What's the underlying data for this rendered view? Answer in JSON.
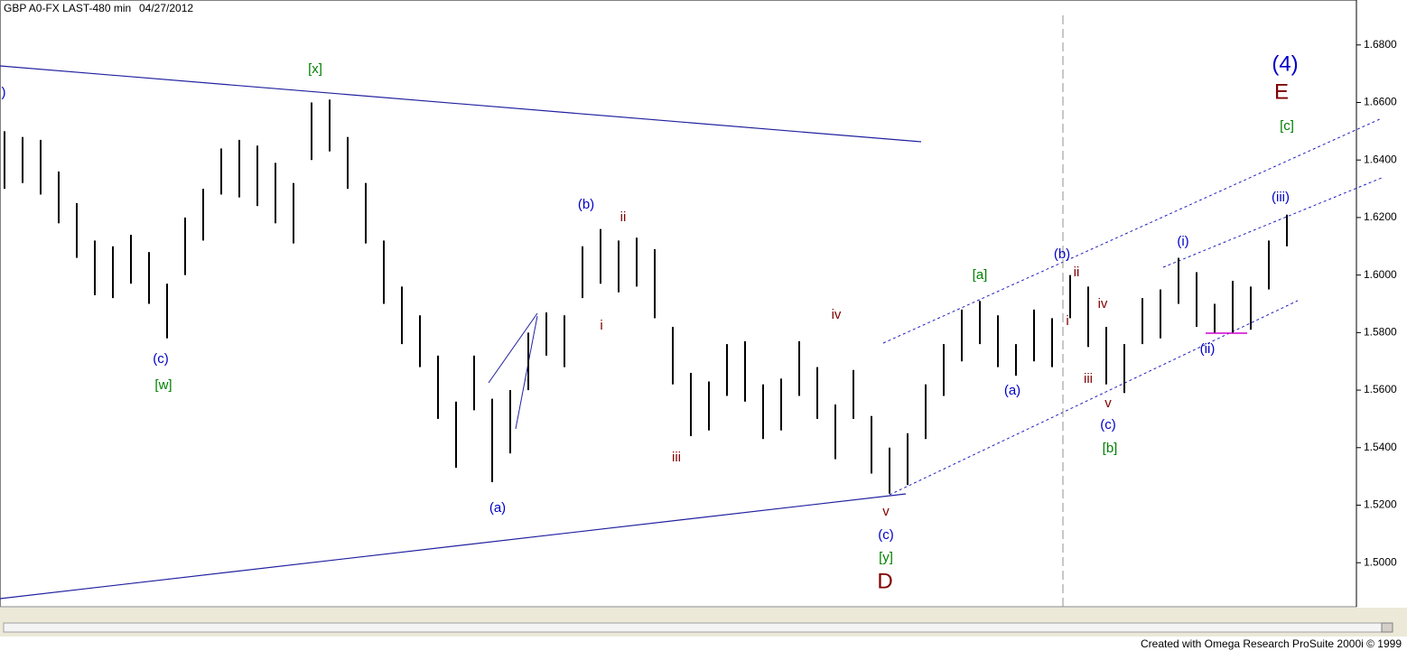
{
  "chart_data": {
    "type": "ohlc",
    "title": "GBP A0-FX LAST-480 min",
    "date": "04/27/2012",
    "ylim": [
      1.485,
      1.695
    ],
    "yticks": [
      {
        "value": 1.5,
        "label": "1.5000"
      },
      {
        "value": 1.52,
        "label": "1.5200"
      },
      {
        "value": 1.54,
        "label": "1.5400"
      },
      {
        "value": 1.56,
        "label": "1.5600"
      },
      {
        "value": 1.58,
        "label": "1.5800"
      },
      {
        "value": 1.6,
        "label": "1.6000"
      },
      {
        "value": 1.62,
        "label": "1.6200"
      },
      {
        "value": 1.64,
        "label": "1.6400"
      },
      {
        "value": 1.66,
        "label": "1.6600"
      },
      {
        "value": 1.68,
        "label": "1.6800"
      }
    ],
    "series": [
      {
        "color": "#000000",
        "high": [
          1.65,
          1.648,
          1.647,
          1.636,
          1.625,
          1.612,
          1.61,
          1.614,
          1.608,
          1.597,
          1.62,
          1.63,
          1.644,
          1.647,
          1.645,
          1.639,
          1.632,
          1.66,
          1.661,
          1.648,
          1.632,
          1.612,
          1.596,
          1.586,
          1.572,
          1.556,
          1.572,
          1.557,
          1.56,
          1.58,
          1.587,
          1.586,
          1.61,
          1.616,
          1.612,
          1.613,
          1.609,
          1.582,
          1.566,
          1.563,
          1.576,
          1.577,
          1.562,
          1.564,
          1.577,
          1.568,
          1.555,
          1.567,
          1.551,
          1.54,
          1.545,
          1.562,
          1.576,
          1.588,
          1.591,
          1.586,
          1.576,
          1.588,
          1.585,
          1.6,
          1.596,
          1.582,
          1.576,
          1.592,
          1.595,
          1.606,
          1.601,
          1.59,
          1.598,
          1.596,
          1.612,
          1.621
        ],
        "low": [
          1.63,
          1.632,
          1.628,
          1.618,
          1.606,
          1.593,
          1.592,
          1.597,
          1.59,
          1.578,
          1.6,
          1.612,
          1.628,
          1.627,
          1.624,
          1.618,
          1.611,
          1.64,
          1.643,
          1.63,
          1.611,
          1.59,
          1.576,
          1.568,
          1.55,
          1.533,
          1.553,
          1.528,
          1.538,
          1.56,
          1.572,
          1.568,
          1.592,
          1.597,
          1.594,
          1.596,
          1.585,
          1.562,
          1.544,
          1.546,
          1.558,
          1.556,
          1.543,
          1.546,
          1.558,
          1.55,
          1.536,
          1.55,
          1.531,
          1.524,
          1.527,
          1.543,
          1.558,
          1.57,
          1.576,
          1.568,
          1.565,
          1.57,
          1.568,
          1.585,
          1.575,
          1.562,
          1.559,
          1.576,
          1.578,
          1.59,
          1.582,
          1.58,
          1.58,
          1.581,
          1.595,
          1.61
        ]
      }
    ],
    "annotations": [
      {
        "text": ")",
        "color": "#0000c8"
      },
      {
        "text": "(c)",
        "color": "#0000c8"
      },
      {
        "text": "[w]",
        "color": "#008000"
      },
      {
        "text": "[x]",
        "color": "#008000"
      },
      {
        "text": "(b)",
        "color": "#0000c8"
      },
      {
        "text": "ii",
        "color": "#800000"
      },
      {
        "text": "i",
        "color": "#800000"
      },
      {
        "text": "(a)",
        "color": "#0000c8"
      },
      {
        "text": "iii",
        "color": "#800000"
      },
      {
        "text": "iv",
        "color": "#800000"
      },
      {
        "text": "v",
        "color": "#800000"
      },
      {
        "text": "(c)",
        "color": "#0000c8"
      },
      {
        "text": "[y]",
        "color": "#008000"
      },
      {
        "text": "D",
        "color": "#800000"
      },
      {
        "text": "[a]",
        "color": "#008000"
      },
      {
        "text": "(a)",
        "color": "#0000c8"
      },
      {
        "text": "(b)",
        "color": "#0000c8"
      },
      {
        "text": "ii",
        "color": "#800000"
      },
      {
        "text": "i",
        "color": "#800000"
      },
      {
        "text": "iv",
        "color": "#800000"
      },
      {
        "text": "iii",
        "color": "#800000"
      },
      {
        "text": "v",
        "color": "#800000"
      },
      {
        "text": "(c)",
        "color": "#0000c8"
      },
      {
        "text": "[b]",
        "color": "#008000"
      },
      {
        "text": "(i)",
        "color": "#0000c8"
      },
      {
        "text": "(ii)",
        "color": "#0000c8"
      },
      {
        "text": "(iii)",
        "color": "#0000c8"
      },
      {
        "text": "[c]",
        "color": "#008000"
      },
      {
        "text": "E",
        "color": "#800000"
      },
      {
        "text": "(4)",
        "color": "#0000c8"
      }
    ]
  },
  "footer": "Created with Omega Research ProSuite 2000i © 1999"
}
